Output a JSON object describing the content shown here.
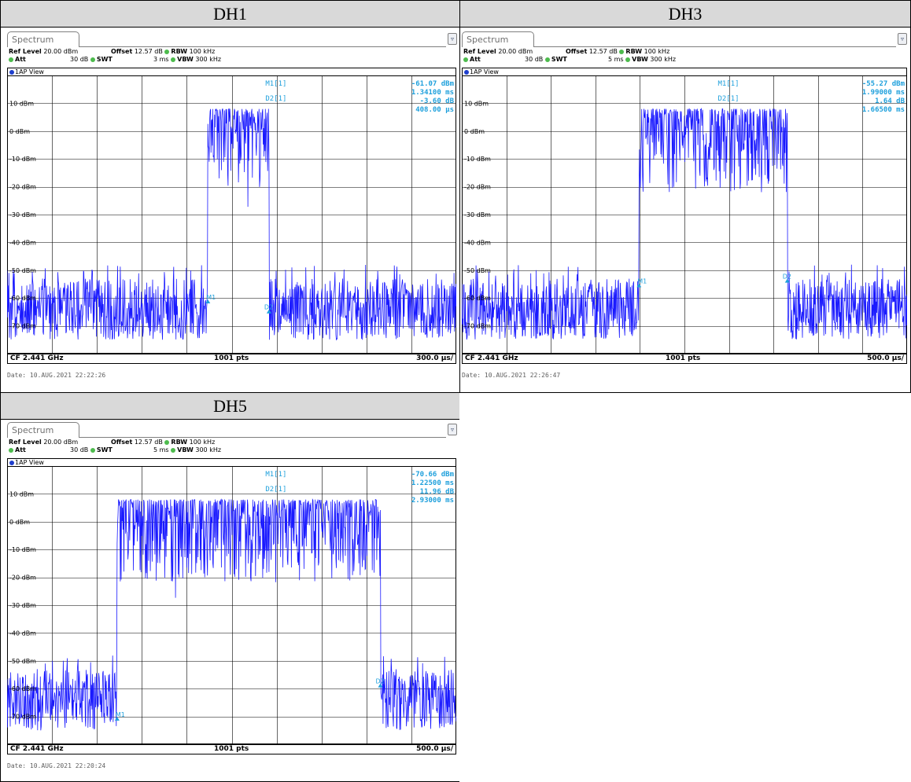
{
  "colors": {
    "trace": "#1a1aff",
    "marker": "#1fa0dc",
    "grid": "#000000"
  },
  "labels": {
    "tab": "Spectrum",
    "menu_icon": "settings-menu-icon",
    "ref_level_label": "Ref Level",
    "ref_level_value": "20.00 dBm",
    "offset_label": "Offset",
    "offset_value": "12.57 dB",
    "rbw_label": "RBW",
    "rbw_value": "100 kHz",
    "att_label": "Att",
    "att_value": "30 dB",
    "swt_label": "SWT",
    "vbw_label": "VBW",
    "vbw_value": "300 kHz",
    "view": "1AP View",
    "cf": "CF 2.441 GHz",
    "pts": "1001 pts",
    "yticks": [
      "10 dBm",
      "0 dBm",
      "-10 dBm",
      "-20 dBm",
      "-30 dBm",
      "-40 dBm",
      "-50 dBm",
      "-60 dBm",
      "-70 dBm"
    ],
    "m1_label": "M1[1]",
    "d2_label": "D2[1]"
  },
  "chart_data": [
    {
      "title": "DH1",
      "type": "line",
      "swt": "3 ms",
      "x_per_div": "300.0 µs/",
      "marker_m1": {
        "level": "-61.07 dBm",
        "time": "1.34100 ms"
      },
      "marker_d2": {
        "level": "-3.60 dB",
        "time": "408.00 µs"
      },
      "date": "Date: 10.AUG.2021  22:22:26",
      "xlim": [
        0,
        3
      ],
      "ylim": [
        -80,
        20
      ],
      "burst": [
        {
          "start": 1.341,
          "end": 1.749
        }
      ],
      "marker_m1_at": {
        "x": 1.341,
        "y": -61.07
      },
      "marker_d2_at": {
        "x": 1.749,
        "y": -64.67
      }
    },
    {
      "title": "DH3",
      "type": "line",
      "swt": "5 ms",
      "x_per_div": "500.0 µs/",
      "marker_m1": {
        "level": "-55.27 dBm",
        "time": "1.99000 ms"
      },
      "marker_d2": {
        "level": "1.64 dB",
        "time": "1.66500 ms"
      },
      "date": "Date: 10.AUG.2021  22:26:47",
      "xlim": [
        0,
        5
      ],
      "ylim": [
        -80,
        20
      ],
      "burst": [
        {
          "start": 1.99,
          "end": 3.655
        }
      ],
      "marker_m1_at": {
        "x": 1.99,
        "y": -55.27
      },
      "marker_d2_at": {
        "x": 3.655,
        "y": -53.63
      }
    },
    {
      "title": "DH5",
      "type": "line",
      "swt": "5 ms",
      "x_per_div": "500.0 µs/",
      "marker_m1": {
        "level": "-70.66 dBm",
        "time": "1.22500 ms"
      },
      "marker_d2": {
        "level": "11.96 dB",
        "time": "2.93000 ms"
      },
      "date": "Date: 10.AUG.2021  22:20:24",
      "xlim": [
        0,
        5
      ],
      "ylim": [
        -80,
        20
      ],
      "burst": [
        {
          "start": 1.225,
          "end": 4.155
        }
      ],
      "marker_m1_at": {
        "x": 1.225,
        "y": -70.66
      },
      "marker_d2_at": {
        "x": 4.155,
        "y": -58.7
      }
    }
  ]
}
